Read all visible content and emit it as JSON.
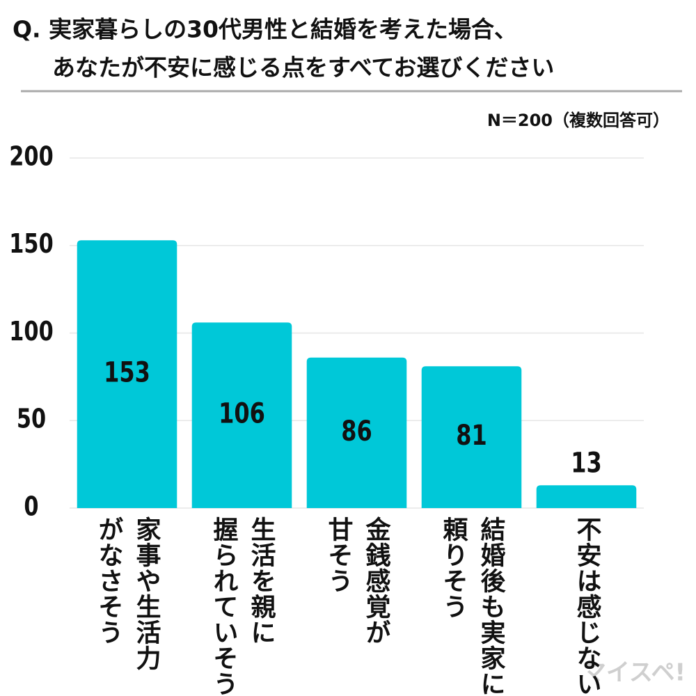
{
  "chart_data": {
    "type": "bar",
    "title_lines": [
      "Q. 実家暮らしの30代男性と結婚を考えた場合、",
      "あなたが不安に感じる点をすべてお選びください"
    ],
    "annotation": "N＝200（複数回答可）",
    "watermark": "マイスペ!",
    "categories": [
      "家事や生活力\nがなさそう",
      "生活を親に\n握られていそう",
      "金銭感覚が\n甘そう",
      "結婚後も実家に\n頼りそう",
      "不安は感じない"
    ],
    "values": [
      153,
      106,
      86,
      81,
      13
    ],
    "color": "#00c8d8",
    "ylim": [
      0,
      200
    ],
    "yticks": [
      0,
      50,
      100,
      150,
      200
    ],
    "grid": true
  }
}
